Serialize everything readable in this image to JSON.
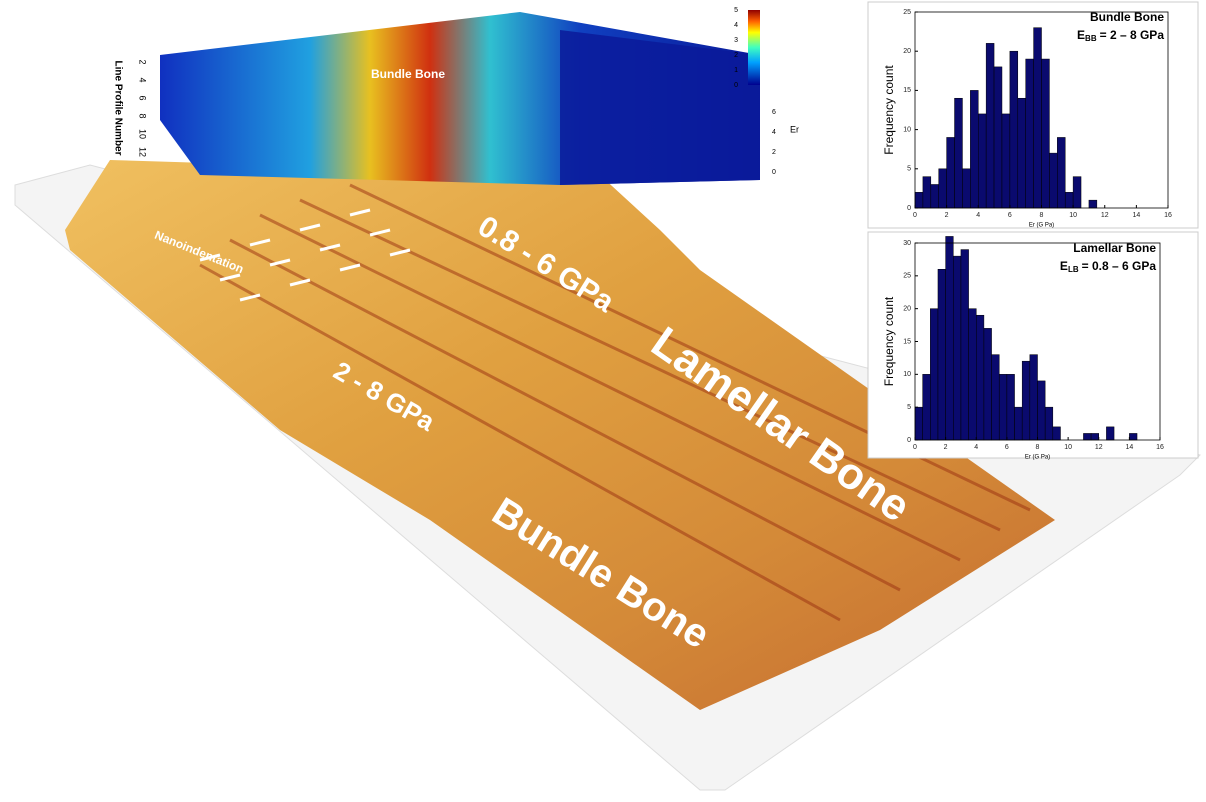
{
  "figure": {
    "labels": {
      "lamellar_range": "0.8 - 6 GPa",
      "lamellar": "Lamellar Bone",
      "bundle": "Bundle Bone",
      "bundle_range": "2 - 8 GPa",
      "nanoindentation": "Nanoindentation"
    },
    "surface_plot": {
      "region_label": "Bundle Bone",
      "y_label": "Line Profile Number",
      "z_label": "Er",
      "y_ticks": [
        2,
        4,
        6,
        8,
        10,
        12
      ],
      "z_ticks": [
        0,
        2,
        4,
        6
      ],
      "colorbar_ticks": [
        0,
        1,
        2,
        3,
        4,
        5
      ]
    }
  },
  "chart_data": [
    {
      "type": "histogram",
      "title": "Bundle Bone",
      "annotation": {
        "symbol": "E",
        "subscript": "BB",
        "text": "= 2 – 8 GPa"
      },
      "x_label": "Er    (G Pa)",
      "y_label": "Frequency count",
      "color": "#0a0a6e",
      "bins": [
        0,
        0.5,
        1,
        1.5,
        2,
        2.5,
        3,
        3.5,
        4,
        4.5,
        5,
        5.5,
        6,
        6.5,
        7,
        7.5,
        8,
        8.5,
        9,
        9.5,
        10,
        10.5,
        11,
        11.5
      ],
      "counts": [
        2,
        4,
        3,
        5,
        9,
        14,
        5,
        15,
        12,
        21,
        18,
        12,
        20,
        14,
        19,
        23,
        19,
        7,
        9,
        2,
        4,
        0,
        1
      ],
      "xlim": [
        0,
        16
      ],
      "xticks": [
        0,
        2,
        4,
        6,
        8,
        10,
        12,
        14,
        16
      ],
      "ylim": [
        0,
        25
      ],
      "yticks": [
        0,
        5,
        10,
        15,
        20,
        25
      ]
    },
    {
      "type": "histogram",
      "title": "Lamellar Bone",
      "annotation": {
        "symbol": "E",
        "subscript": "LB",
        "text": "= 0.8 – 6 GPa"
      },
      "x_label": "Er    (G Pa)",
      "y_label": "Frequency count",
      "color": "#0a0a6e",
      "bins": [
        0,
        0.5,
        1,
        1.5,
        2,
        2.5,
        3,
        3.5,
        4,
        4.5,
        5,
        5.5,
        6,
        6.5,
        7,
        7.5,
        8,
        8.5,
        9,
        9.5,
        10,
        10.5,
        11,
        11.5,
        12,
        12.5,
        13,
        13.5,
        14,
        14.5
      ],
      "counts": [
        5,
        10,
        20,
        26,
        31,
        28,
        29,
        20,
        19,
        17,
        13,
        10,
        10,
        5,
        12,
        13,
        9,
        5,
        2,
        0,
        0,
        0,
        1,
        1,
        0,
        2,
        0,
        0,
        1
      ],
      "xlim": [
        0,
        16
      ],
      "xticks": [
        0,
        2,
        4,
        6,
        8,
        10,
        12,
        14,
        16
      ],
      "ylim": [
        0,
        30
      ],
      "yticks": [
        0,
        5,
        10,
        15,
        20,
        25,
        30
      ]
    }
  ]
}
